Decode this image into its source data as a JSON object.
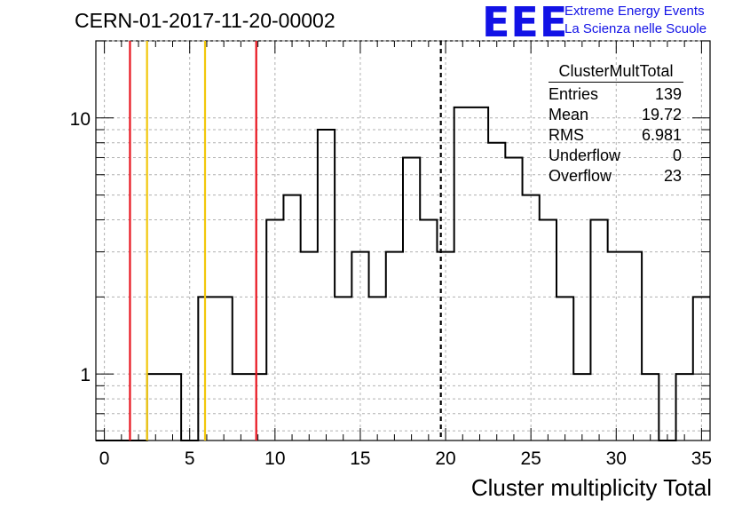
{
  "header": {
    "run_title": "CERN-01-2017-11-20-00002",
    "logo_text": "EEE",
    "logo_line1": "Extreme Energy Events",
    "logo_line2": "La Scienza nelle Scuole"
  },
  "stats_box": {
    "title": "ClusterMultTotal",
    "rows": [
      {
        "label": "Entries",
        "value": "139"
      },
      {
        "label": "Mean",
        "value": "19.72"
      },
      {
        "label": "RMS",
        "value": "6.981"
      },
      {
        "label": "Underflow",
        "value": "0"
      },
      {
        "label": "Overflow",
        "value": "23"
      }
    ]
  },
  "chart_data": {
    "type": "histogram",
    "xlabel": "Cluster multiplicity Total",
    "ylabel": "",
    "xlim": [
      -0.5,
      35.5
    ],
    "ylim": [
      0.55,
      20
    ],
    "yscale": "log",
    "grid": true,
    "bin_width": 1,
    "bin_centers": [
      0,
      1,
      2,
      3,
      4,
      5,
      6,
      7,
      8,
      9,
      10,
      11,
      12,
      13,
      14,
      15,
      16,
      17,
      18,
      19,
      20,
      21,
      22,
      23,
      24,
      25,
      26,
      27,
      28,
      29,
      30,
      31,
      32,
      33,
      34,
      35
    ],
    "values": [
      0,
      0,
      0,
      1,
      1,
      0,
      2,
      2,
      1,
      1,
      4,
      5,
      3,
      9,
      2,
      3,
      2,
      3,
      7,
      4,
      3,
      11,
      11,
      8,
      7,
      5,
      4,
      2,
      1,
      4,
      3,
      3,
      1,
      0,
      1,
      2
    ],
    "x_ticks": [
      0,
      5,
      10,
      15,
      20,
      25,
      30,
      35
    ],
    "y_ticks": [
      1,
      10
    ],
    "vertical_lines": [
      {
        "x": 1.5,
        "color": "#e8141e",
        "style": "solid"
      },
      {
        "x": 2.5,
        "color": "#f2c70b",
        "style": "solid"
      },
      {
        "x": 5.9,
        "color": "#f2c70b",
        "style": "solid"
      },
      {
        "x": 8.9,
        "color": "#e8141e",
        "style": "solid"
      },
      {
        "x": 19.72,
        "color": "#000000",
        "style": "dashed"
      }
    ],
    "line_color": "#000000"
  }
}
